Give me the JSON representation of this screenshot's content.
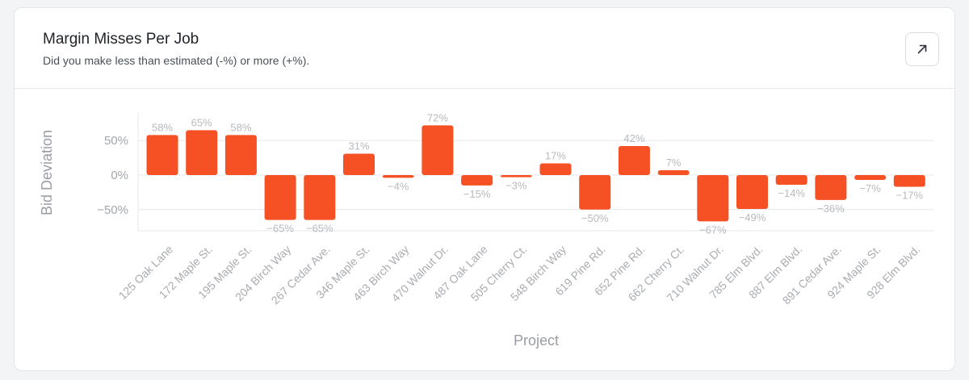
{
  "card": {
    "title": "Margin Misses Per Job",
    "subtitle": "Did you make less than estimated (-%) or more (+%)."
  },
  "icons": {
    "expand": "arrow-up-right-icon"
  },
  "colors": {
    "bar": "#f55125",
    "grid": "#e5e7eb",
    "axis": "#d1d4d8"
  },
  "chart_data": {
    "type": "bar",
    "categories": [
      "125 Oak Lane",
      "172 Maple St.",
      "195 Maple St.",
      "204 Birch Way",
      "267 Cedar Ave.",
      "346 Maple St.",
      "463 Birch Way",
      "470 Walnut Dr.",
      "487 Oak Lane",
      "505 Cherry Ct.",
      "548 Birch Way",
      "619 Pine Rd.",
      "652 Pine Rd.",
      "662 Cherry Ct.",
      "710 Walnut Dr.",
      "785 Elm Blvd.",
      "887 Elm Blvd.",
      "891 Cedar Ave.",
      "924 Maple St.",
      "928 Elm Blvd."
    ],
    "values": [
      58,
      65,
      58,
      -65,
      -65,
      31,
      -4,
      72,
      -15,
      -3,
      17,
      -50,
      42,
      7,
      -67,
      -49,
      -14,
      -36,
      -7,
      -17
    ],
    "data_labels": [
      "58%",
      "65%",
      "58%",
      "−65%",
      "−65%",
      "31%",
      "−4%",
      "72%",
      "−15%",
      "−3%",
      "17%",
      "−50%",
      "42%",
      "7%",
      "−67%",
      "−49%",
      "−14%",
      "−36%",
      "−7%",
      "−17%"
    ],
    "xlabel": "Project",
    "ylabel": "Bid Deviation",
    "yticks": [
      50,
      0,
      -50
    ],
    "ytick_labels": [
      "50%",
      "0%",
      "−50%"
    ],
    "ylim": [
      -80,
      90
    ],
    "grid": true,
    "legend": "none"
  }
}
